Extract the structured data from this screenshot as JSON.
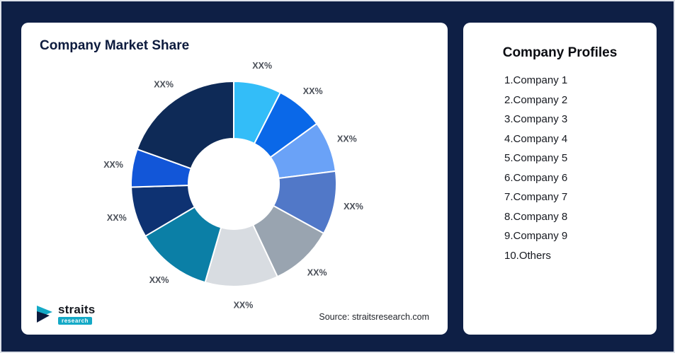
{
  "page": {
    "background": "#0e1f45"
  },
  "chart_card": {
    "title": "Company Market Share",
    "source": "Source: straitsresearch.com"
  },
  "logo": {
    "name": "straits",
    "sub": "research",
    "accent_color": "#14a9c6",
    "dark_color": "#0d1b3e"
  },
  "profiles_card": {
    "title": "Company Profiles",
    "items": [
      "1.Company 1",
      "2.Company 2",
      "3.Company 3",
      "4.Company 4",
      "5.Company 5",
      "6.Company 6",
      "7.Company 7",
      "8.Company 8",
      "9.Company 9",
      "10.Others"
    ]
  },
  "chart_data": {
    "type": "pie",
    "donut": true,
    "title": "Company Market Share",
    "legend_position": "none",
    "start_angle_deg": 0,
    "series_names": [
      "Company 1",
      "Company 2",
      "Company 3",
      "Company 4",
      "Company 5",
      "Company 6",
      "Company 7",
      "Company 8",
      "Company 9",
      "Others"
    ],
    "labels": [
      "XX%",
      "XX%",
      "XX%",
      "XX%",
      "XX%",
      "XX%",
      "XX%",
      "XX%",
      "XX%",
      "XX%"
    ],
    "values": [
      7.5,
      7.5,
      8,
      10,
      10,
      11.5,
      12,
      8,
      6,
      19.5
    ],
    "colors": [
      "#33bdf8",
      "#0a68e8",
      "#6aa2f7",
      "#5178c8",
      "#99a4b0",
      "#d8dce1",
      "#0b7fa6",
      "#0e3272",
      "#1256d8",
      "#0e2a57"
    ],
    "label_color": "#4a4f58"
  }
}
